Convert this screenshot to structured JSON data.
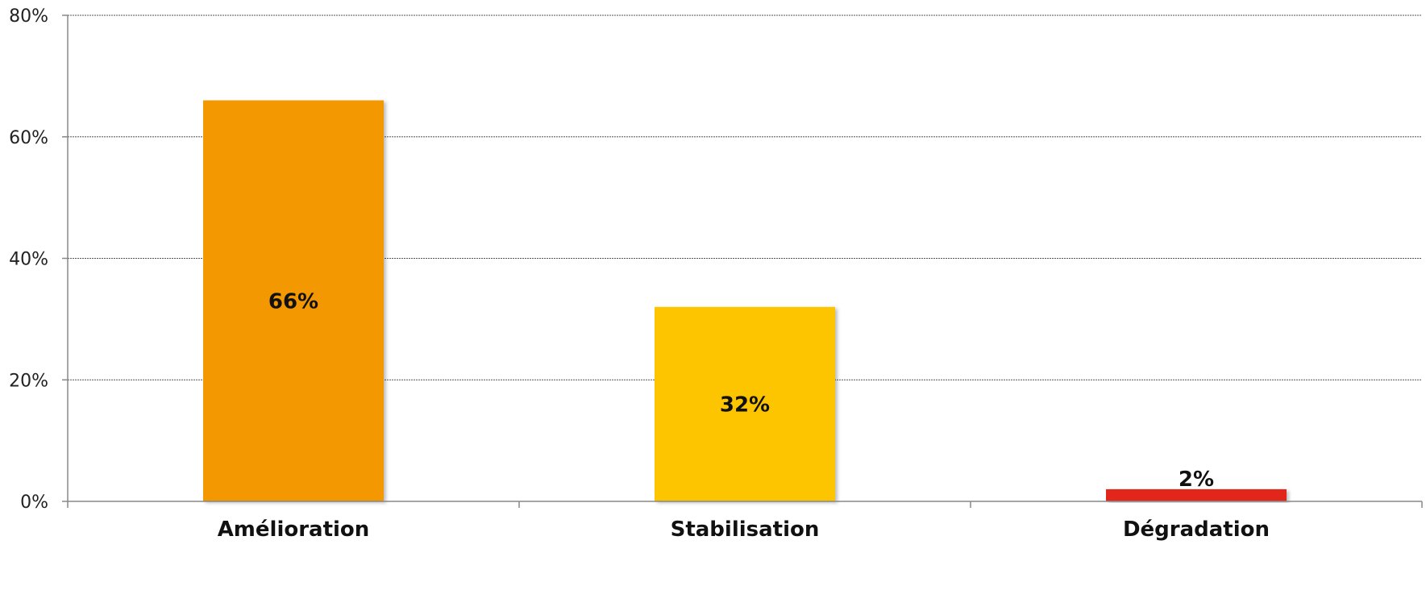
{
  "chart_data": {
    "type": "bar",
    "title": "",
    "xlabel": "",
    "ylabel": "",
    "categories": [
      "Amélioration",
      "Stabilisation",
      "Dégradation"
    ],
    "values": [
      66,
      32,
      2
    ],
    "value_labels": [
      "66%",
      "32%",
      "2%"
    ],
    "colors": [
      "#F39800",
      "#FCC500",
      "#E3261F"
    ],
    "ylim": [
      0,
      80
    ],
    "yticks": [
      0,
      20,
      40,
      60,
      80
    ],
    "ytick_labels": [
      "0%",
      "20%",
      "40%",
      "60%",
      "80%"
    ],
    "grid": true,
    "legend": "none"
  }
}
